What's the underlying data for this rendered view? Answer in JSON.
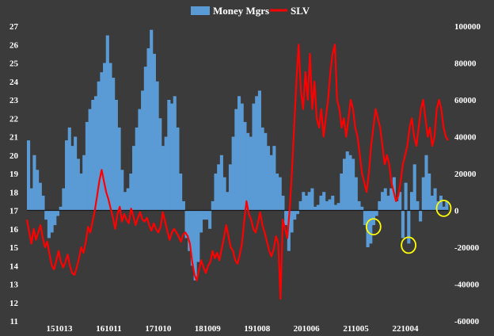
{
  "chart_data": {
    "type": "bar+line",
    "title": "",
    "legend": {
      "placement": "top-center",
      "items": [
        {
          "name": "Money Mgrs",
          "symbol": "bar",
          "color": "#5b9bd5"
        },
        {
          "name": "SLV",
          "symbol": "line",
          "color": "#ff0000"
        }
      ]
    },
    "y_left": {
      "min": 11,
      "max": 27,
      "ticks": [
        11,
        12,
        13,
        14,
        15,
        16,
        17,
        18,
        19,
        20,
        21,
        22,
        23,
        24,
        25,
        26,
        27
      ]
    },
    "y_right": {
      "min": -60000,
      "max": 100000,
      "ticks": [
        -60000,
        -40000,
        -20000,
        0,
        20000,
        40000,
        60000,
        80000,
        100000
      ]
    },
    "x_tick_labels": [
      "151013",
      "161011",
      "171010",
      "181009",
      "191008",
      "201006",
      "211005",
      "221004"
    ],
    "grid": false,
    "series": [
      {
        "name": "Money Mgrs",
        "type": "bar",
        "axis": "right",
        "color": "#5b9bd5",
        "values": [
          38000,
          12000,
          30000,
          22000,
          15000,
          8000,
          -5000,
          -15000,
          -12000,
          -8000,
          -3000,
          2000,
          12000,
          38000,
          45000,
          35000,
          40000,
          28000,
          20000,
          30000,
          48000,
          55000,
          60000,
          62000,
          70000,
          75000,
          80000,
          95000,
          80000,
          72000,
          60000,
          45000,
          22000,
          10000,
          12000,
          20000,
          35000,
          45000,
          55000,
          65000,
          78000,
          88000,
          98000,
          85000,
          70000,
          50000,
          35000,
          40000,
          60000,
          58000,
          62000,
          45000,
          20000,
          5000,
          -15000,
          -22000,
          -30000,
          -38000,
          -28000,
          -12000,
          -5000,
          -5000,
          -10000,
          5000,
          20000,
          25000,
          30000,
          18000,
          10000,
          25000,
          40000,
          55000,
          62000,
          58000,
          48000,
          42000,
          40000,
          58000,
          62000,
          65000,
          45000,
          42000,
          35000,
          30000,
          35000,
          20000,
          18000,
          8000,
          -8000,
          -22000,
          -12000,
          -5000,
          -2000,
          5000,
          10000,
          8000,
          10000,
          12000,
          2000,
          3000,
          8000,
          10000,
          5000,
          6000,
          8000,
          3000,
          4000,
          20000,
          28000,
          32000,
          30000,
          28000,
          18000,
          5000,
          2000,
          -8000,
          -20000,
          -18000,
          -8000,
          -3000,
          5000,
          10000,
          12000,
          8000,
          12000,
          18000,
          5000,
          10000,
          -15000,
          15000,
          -18000,
          10000,
          25000,
          5000,
          -6000,
          18000,
          30000,
          20000,
          8000,
          12000,
          5000,
          8000,
          2000,
          5000
        ],
        "note": "weekly positioning bars"
      },
      {
        "name": "SLV",
        "type": "line",
        "axis": "left",
        "color": "#ff0000",
        "values": [
          16.5,
          15.8,
          15.2,
          16.0,
          15.4,
          15.8,
          16.2,
          15.5,
          15.0,
          15.3,
          14.6,
          14.0,
          13.8,
          14.3,
          14.8,
          14.2,
          13.9,
          14.2,
          14.6,
          14.0,
          13.6,
          13.5,
          13.9,
          14.4,
          15.0,
          14.7,
          15.3,
          16.1,
          15.8,
          16.4,
          17.0,
          17.8,
          18.6,
          19.2,
          18.6,
          18.0,
          17.6,
          17.1,
          16.6,
          16.0,
          16.8,
          17.2,
          16.4,
          16.8,
          16.5,
          16.3,
          17.1,
          16.7,
          16.2,
          16.6,
          16.9,
          16.5,
          16.4,
          16.6,
          16.2,
          15.9,
          16.3,
          16.0,
          15.8,
          16.1,
          16.9,
          16.4,
          15.9,
          15.4,
          15.8,
          16.0,
          15.8,
          15.6,
          15.3,
          15.7,
          15.8,
          15.6,
          15.2,
          14.2,
          13.5,
          13.2,
          13.8,
          14.3,
          13.9,
          13.6,
          14.0,
          14.2,
          14.8,
          14.4,
          14.7,
          14.3,
          14.9,
          15.5,
          16.2,
          15.6,
          15.0,
          14.8,
          14.3,
          14.1,
          14.6,
          15.2,
          16.5,
          17.5,
          16.8,
          16.5,
          16.0,
          15.8,
          16.3,
          16.9,
          16.2,
          15.8,
          15.3,
          14.8,
          14.5,
          14.9,
          15.6,
          15.2,
          12.2,
          16.5,
          16.0,
          15.5,
          17.0,
          19.0,
          21.5,
          24.0,
          26.0,
          23.5,
          22.5,
          24.5,
          23.0,
          25.5,
          22.5,
          24.0,
          22.0,
          21.5,
          22.5,
          21.0,
          22.0,
          23.0,
          24.5,
          25.5,
          26.0,
          23.0,
          22.5,
          21.5,
          22.0,
          21.0,
          22.0,
          23.0,
          22.5,
          21.5,
          21.0,
          20.0,
          19.0,
          18.5,
          18.0,
          19.0,
          20.5,
          21.5,
          22.5,
          22.0,
          21.5,
          20.5,
          19.5,
          20.0,
          19.5,
          18.5,
          18.0,
          17.5,
          17.8,
          18.5,
          19.5,
          20.0,
          20.5,
          21.5,
          22.0,
          21.0,
          20.5,
          21.5,
          22.5,
          23.0,
          22.0,
          21.0,
          21.5,
          20.5,
          21.0,
          22.5,
          23.0,
          22.5,
          21.5,
          21.0,
          20.8
        ],
        "note": "weekly price"
      }
    ],
    "annotations": [
      {
        "shape": "circle",
        "color": "#ffff00",
        "target": "Money Mgrs",
        "description": "trough 1"
      },
      {
        "shape": "circle",
        "color": "#ffff00",
        "target": "Money Mgrs",
        "description": "trough 2"
      },
      {
        "shape": "circle",
        "color": "#ffff00",
        "target": "Money Mgrs",
        "description": "trough 3"
      }
    ]
  }
}
